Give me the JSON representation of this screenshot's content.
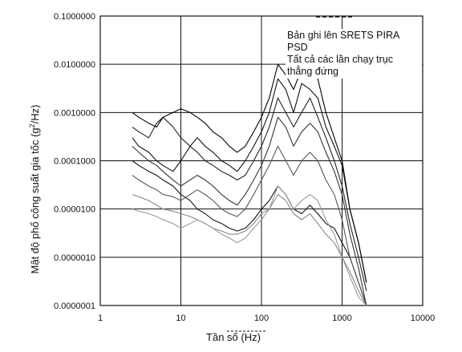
{
  "chart_data": {
    "type": "line",
    "xscale": "log",
    "yscale": "log",
    "xlim": [
      1,
      10000
    ],
    "ylim": [
      1e-07,
      0.1
    ],
    "grid": true,
    "xlabel": "Tần số (Hz)",
    "ylabel": "Mật độ phổ công suất gia tốc (g",
    "ylabel_sup": "2",
    "ylabel_tail": "/Hz)",
    "x_ticks": [
      "1",
      "10",
      "100",
      "1000",
      "10000"
    ],
    "y_ticks": [
      "0.0000001",
      "0.0000010",
      "0.0000100",
      "0.0001000",
      "0.0010000",
      "0.0100000",
      "0.1000000"
    ],
    "legend_placement": "top-right",
    "legend_lines": [
      "Bản ghi lên SRETS PIRA",
      "PSD",
      "Tất cả các lần chạy trục",
      "thẳng đứng"
    ],
    "series": [
      {
        "x": [
          2.5,
          3,
          4,
          5,
          6,
          8,
          10,
          13,
          16,
          20,
          25,
          32,
          40,
          50,
          63,
          80,
          100,
          125,
          160,
          200,
          250,
          315,
          400,
          500,
          630,
          800,
          1000,
          1250,
          1600,
          2000
        ],
        "y": [
          0.0001,
          8e-05,
          6e-05,
          5e-05,
          4e-05,
          3e-05,
          2e-05,
          1.5e-05,
          1e-05,
          8e-06,
          6e-06,
          5e-06,
          4e-06,
          3.5e-06,
          4e-06,
          6e-06,
          1e-05,
          1.5e-05,
          3e-05,
          2e-05,
          1e-05,
          8e-06,
          1.2e-05,
          8e-06,
          5e-06,
          4e-06,
          2e-06,
          1e-06,
          3e-07,
          1e-07
        ]
      },
      {
        "x": [
          2.5,
          3,
          4,
          5,
          6,
          8,
          10,
          13,
          16,
          20,
          25,
          32,
          40,
          50,
          63,
          80,
          100,
          125,
          160,
          200,
          250,
          315,
          400,
          500,
          630,
          800,
          1000,
          1250,
          1600,
          2000
        ],
        "y": [
          0.0005,
          0.0004,
          0.0003,
          0.0006,
          0.0008,
          0.0005,
          0.0003,
          0.0002,
          0.00015,
          0.0001,
          8e-05,
          6e-05,
          5e-05,
          4e-05,
          5e-05,
          0.0001,
          0.0002,
          0.0005,
          0.002,
          0.001,
          0.0005,
          0.001,
          0.002,
          0.0008,
          0.0003,
          0.0001,
          3e-05,
          5e-06,
          1e-06,
          2e-07
        ]
      },
      {
        "x": [
          2.5,
          3,
          4,
          5,
          6,
          8,
          10,
          13,
          16,
          20,
          25,
          32,
          40,
          50,
          63,
          80,
          100,
          125,
          160,
          200,
          250,
          315,
          400,
          500,
          630,
          800,
          1000,
          1250,
          1600,
          2000
        ],
        "y": [
          2e-05,
          1.8e-05,
          1.5e-05,
          1.2e-05,
          1e-05,
          9e-06,
          8e-06,
          7e-06,
          6e-06,
          5e-06,
          4e-06,
          3.5e-06,
          3e-06,
          3e-06,
          3.5e-06,
          5e-06,
          8e-06,
          1e-05,
          2e-05,
          1.5e-05,
          8e-06,
          6e-06,
          8e-06,
          5e-06,
          3e-06,
          2e-06,
          1e-06,
          5e-07,
          2e-07,
          1e-07
        ]
      },
      {
        "x": [
          2.5,
          3,
          4,
          5,
          6,
          8,
          10,
          13,
          16,
          20,
          25,
          32,
          40,
          50,
          63,
          80,
          100,
          125,
          160,
          200,
          250,
          315,
          400,
          500,
          630,
          800,
          1000,
          1250,
          1600,
          2000
        ],
        "y": [
          0.0003,
          0.0002,
          0.00015,
          0.0001,
          8e-05,
          6e-05,
          0.0001,
          0.0002,
          0.0003,
          0.0002,
          0.00015,
          0.0001,
          8e-05,
          6e-05,
          0.0001,
          0.0002,
          0.0004,
          0.001,
          0.005,
          0.003,
          0.001,
          0.004,
          0.003,
          0.002,
          0.0005,
          0.0002,
          8e-05,
          1e-05,
          2e-06,
          3e-07
        ]
      },
      {
        "x": [
          2.5,
          3,
          4,
          5,
          6,
          8,
          10,
          13,
          16,
          20,
          25,
          32,
          40,
          50,
          63,
          80,
          100,
          125,
          160,
          200,
          250,
          315,
          400,
          500,
          630,
          800,
          1000,
          1250,
          1600,
          2000
        ],
        "y": [
          5e-05,
          4e-05,
          3e-05,
          2.5e-05,
          2e-05,
          1.8e-05,
          1.5e-05,
          2e-05,
          2.5e-05,
          2e-05,
          1.5e-05,
          1e-05,
          8e-06,
          7e-06,
          1e-05,
          2e-05,
          4e-05,
          8e-05,
          0.0002,
          0.0001,
          5e-05,
          0.0001,
          0.00015,
          0.0001,
          4e-05,
          2e-05,
          6e-06,
          1e-06,
          3e-07,
          1e-07
        ]
      },
      {
        "x": [
          2.5,
          3,
          4,
          5,
          6,
          8,
          10,
          13,
          16,
          20,
          25,
          32,
          40,
          50,
          63,
          80,
          100,
          125,
          160,
          200,
          250,
          315,
          400,
          500,
          630,
          800,
          1000,
          1250,
          1600,
          2000
        ],
        "y": [
          0.0002,
          0.00015,
          0.0001,
          8e-05,
          6e-05,
          4e-05,
          3e-05,
          4e-05,
          5e-05,
          4e-05,
          3e-05,
          2e-05,
          1.5e-05,
          1.2e-05,
          2e-05,
          4e-05,
          8e-05,
          0.0002,
          0.0008,
          0.0005,
          0.0002,
          0.0004,
          0.0006,
          0.0004,
          0.00015,
          6e-05,
          2e-05,
          3e-06,
          6e-07,
          1e-07
        ]
      },
      {
        "x": [
          2.5,
          3,
          4,
          5,
          6,
          8,
          10,
          13,
          16,
          20,
          25,
          32,
          40,
          50,
          63,
          80,
          100,
          125,
          160,
          200,
          250,
          315,
          400,
          500,
          630,
          800,
          1000,
          1250,
          1600,
          2000
        ],
        "y": [
          1e-05,
          9e-06,
          8e-06,
          7e-06,
          6e-06,
          5e-06,
          4e-06,
          5e-06,
          6e-06,
          5e-06,
          4e-06,
          3e-06,
          2.5e-06,
          2e-06,
          2.5e-06,
          4e-06,
          6e-06,
          1e-05,
          3e-05,
          2e-05,
          1e-05,
          1.5e-05,
          2e-05,
          1.5e-05,
          6e-06,
          3e-06,
          1e-06,
          4e-07,
          1.5e-07,
          1e-07
        ]
      },
      {
        "x": [
          2.5,
          3,
          4,
          5,
          6,
          8,
          10,
          13,
          16,
          20,
          25,
          32,
          40,
          50,
          63,
          80,
          100,
          125,
          160,
          200,
          250,
          315,
          400,
          500,
          630,
          800,
          1000,
          1250,
          1600,
          2000
        ],
        "y": [
          0.001,
          0.0008,
          0.0006,
          0.0005,
          0.0008,
          0.001,
          0.0012,
          0.001,
          0.0008,
          0.0006,
          0.0004,
          0.0003,
          0.0002,
          0.00015,
          0.0002,
          0.0004,
          0.0008,
          0.002,
          0.01,
          0.006,
          0.003,
          0.008,
          0.02,
          0.005,
          0.001,
          0.0003,
          0.0001,
          1e-05,
          2e-06,
          3e-07
        ]
      }
    ]
  }
}
